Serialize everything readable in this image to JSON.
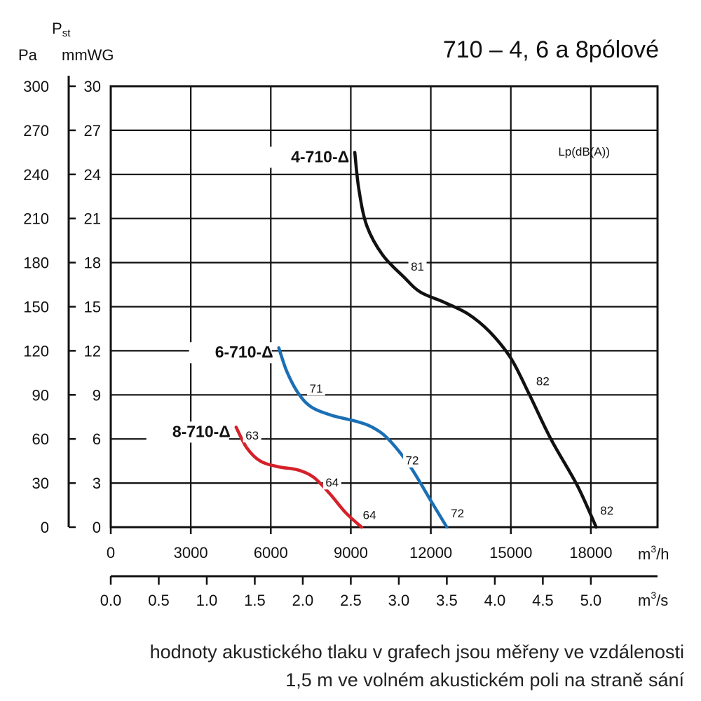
{
  "chart_data": {
    "type": "line",
    "title": "710 – 4, 6 a 8pólové",
    "y_left_unit": "Pa",
    "y_right_unit_symbol": "P",
    "y_right_unit_sub": "st",
    "y_right_unit": "mmWG",
    "x_unit_top_base": "m",
    "x_unit_top_sup": "3",
    "x_unit_top_tail": "/h",
    "x_unit_bottom_base": "m",
    "x_unit_bottom_sup": "3",
    "x_unit_bottom_tail": "/s",
    "noise_axis_label": "Lp(dB(A))",
    "xlim": [
      0,
      20500
    ],
    "ylim": [
      0,
      30
    ],
    "x_ticks_m3h": [
      "0",
      "3000",
      "6000",
      "9000",
      "12000",
      "15000",
      "18000"
    ],
    "x_ticks_m3h_values": [
      0,
      3000,
      6000,
      9000,
      12000,
      15000,
      18000
    ],
    "x_ticks_m3s": [
      "0.0",
      "0.5",
      "1.0",
      "1.5",
      "2.0",
      "2.5",
      "3.0",
      "3.5",
      "4.0",
      "4.5",
      "5.0"
    ],
    "x_ticks_m3s_values": [
      0,
      0.5,
      1.0,
      1.5,
      2.0,
      2.5,
      3.0,
      3.5,
      4.0,
      4.5,
      5.0
    ],
    "y_ticks_pa": [
      "0",
      "30",
      "60",
      "90",
      "120",
      "150",
      "180",
      "210",
      "240",
      "270",
      "300"
    ],
    "y_ticks_mmwg": [
      "0",
      "3",
      "6",
      "9",
      "12",
      "15",
      "18",
      "21",
      "24",
      "27",
      "30"
    ],
    "y_ticks_values": [
      0,
      3,
      6,
      9,
      12,
      15,
      18,
      21,
      24,
      27,
      30
    ],
    "series": [
      {
        "name": "4-710-Δ",
        "color": "#111111",
        "x": [
          9150,
          9300,
          9600,
          10200,
          11000,
          11600,
          12500,
          13400,
          14200,
          15000,
          15700,
          16500,
          17500,
          18200
        ],
        "y": [
          25.5,
          23.0,
          20.5,
          18.5,
          17.0,
          16.0,
          15.3,
          14.5,
          13.3,
          11.5,
          9.0,
          6.0,
          2.8,
          0.0
        ],
        "noise": [
          {
            "label": "81",
            "x": 11500,
            "y": 17.6
          },
          {
            "label": "82",
            "x": 16200,
            "y": 9.8
          },
          {
            "label": "82",
            "x": 18600,
            "y": 1.0
          }
        ]
      },
      {
        "name": "6-710-Δ",
        "color": "#1b6fb5",
        "x": [
          6300,
          6600,
          7000,
          7500,
          8300,
          9200,
          9800,
          10400,
          11200,
          12000,
          12600
        ],
        "y": [
          12.2,
          10.6,
          9.2,
          8.2,
          7.6,
          7.2,
          6.8,
          6.0,
          4.2,
          1.8,
          0.0
        ],
        "noise": [
          {
            "label": "71",
            "x": 7700,
            "y": 9.3
          },
          {
            "label": "72",
            "x": 11300,
            "y": 4.4
          },
          {
            "label": "72",
            "x": 13000,
            "y": 0.8
          }
        ]
      },
      {
        "name": "8-710-Δ",
        "color": "#d4212a",
        "x": [
          4700,
          5100,
          5600,
          6300,
          7000,
          7600,
          8200,
          8800,
          9400
        ],
        "y": [
          6.8,
          5.4,
          4.5,
          4.1,
          3.9,
          3.4,
          2.3,
          1.0,
          0.0
        ],
        "noise": [
          {
            "label": "63",
            "x": 5300,
            "y": 6.1
          },
          {
            "label": "64",
            "x": 8300,
            "y": 2.9
          },
          {
            "label": "64",
            "x": 9700,
            "y": 0.7
          }
        ]
      }
    ],
    "footnote_lines": [
      "hodnoty akustického tlaku v grafech jsou měřeny ve vzdálenosti",
      "1,5 m ve volném akustickém poli na straně sání"
    ]
  }
}
